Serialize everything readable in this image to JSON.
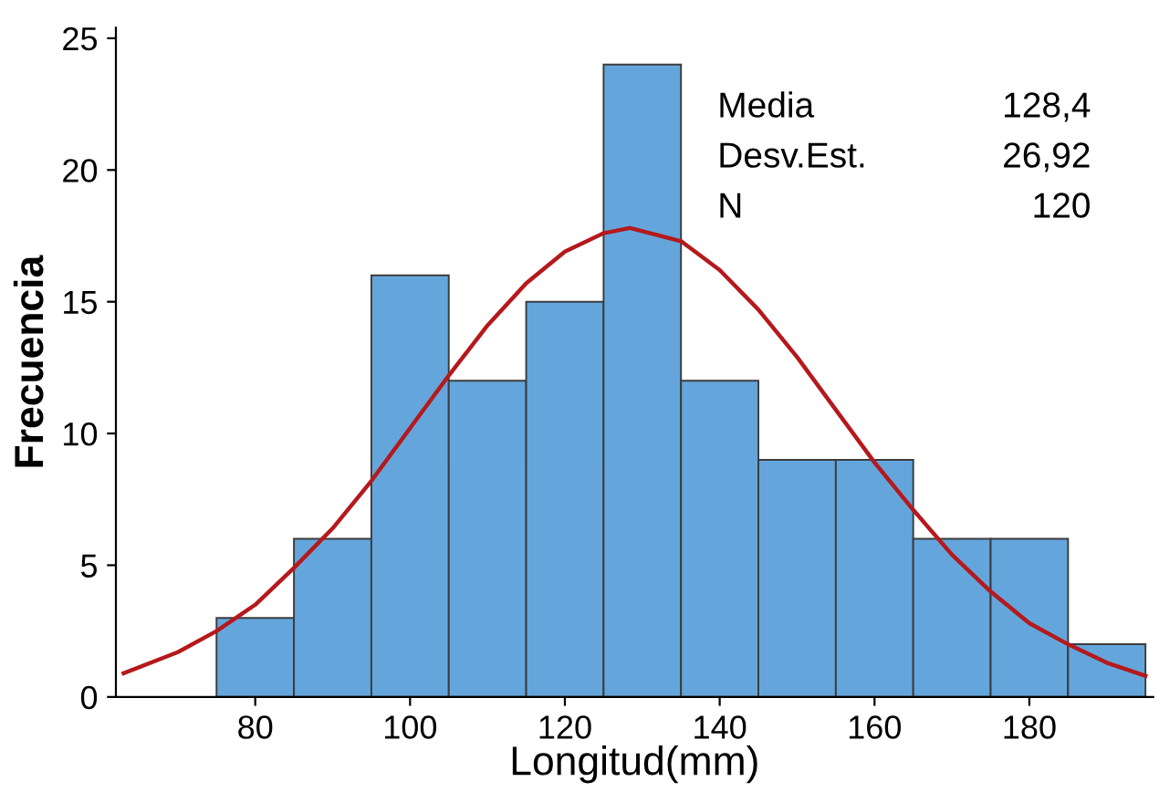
{
  "chart_data": {
    "type": "histogram",
    "xlabel": "Longitud(mm)",
    "ylabel": "Frecuencia",
    "series": [
      {
        "color": "#64a6dc",
        "bins": [
          75,
          85,
          95,
          105,
          115,
          125,
          135,
          145,
          155,
          165,
          175,
          185,
          195
        ],
        "values": [
          3,
          6,
          16,
          12,
          15,
          24,
          12,
          9,
          9,
          6,
          6,
          2
        ]
      },
      {
        "type": "line",
        "color": "#b5191c",
        "x": [
          63,
          70,
          75,
          80,
          85,
          90,
          95,
          100,
          105,
          110,
          115,
          120,
          125,
          128.4,
          135,
          140,
          145,
          150,
          155,
          160,
          165,
          170,
          175,
          180,
          185,
          190,
          195
        ],
        "values": [
          0.9,
          1.7,
          2.5,
          3.5,
          4.9,
          6.4,
          8.2,
          10.2,
          12.2,
          14.1,
          15.7,
          16.9,
          17.6,
          17.8,
          17.3,
          16.2,
          14.7,
          12.9,
          10.9,
          8.9,
          7.1,
          5.4,
          4.0,
          2.8,
          2.0,
          1.3,
          0.8
        ]
      }
    ],
    "xlim": [
      62,
      196
    ],
    "ylim": [
      0,
      25.4
    ],
    "xticks": [
      80,
      100,
      120,
      140,
      160,
      180
    ],
    "yticks": [
      0,
      5,
      10,
      15,
      20,
      25
    ],
    "grid": false,
    "legend": false,
    "annotations": [
      "Media",
      "128,4",
      "Desv.Est.",
      "26,92",
      "N",
      "120"
    ]
  }
}
